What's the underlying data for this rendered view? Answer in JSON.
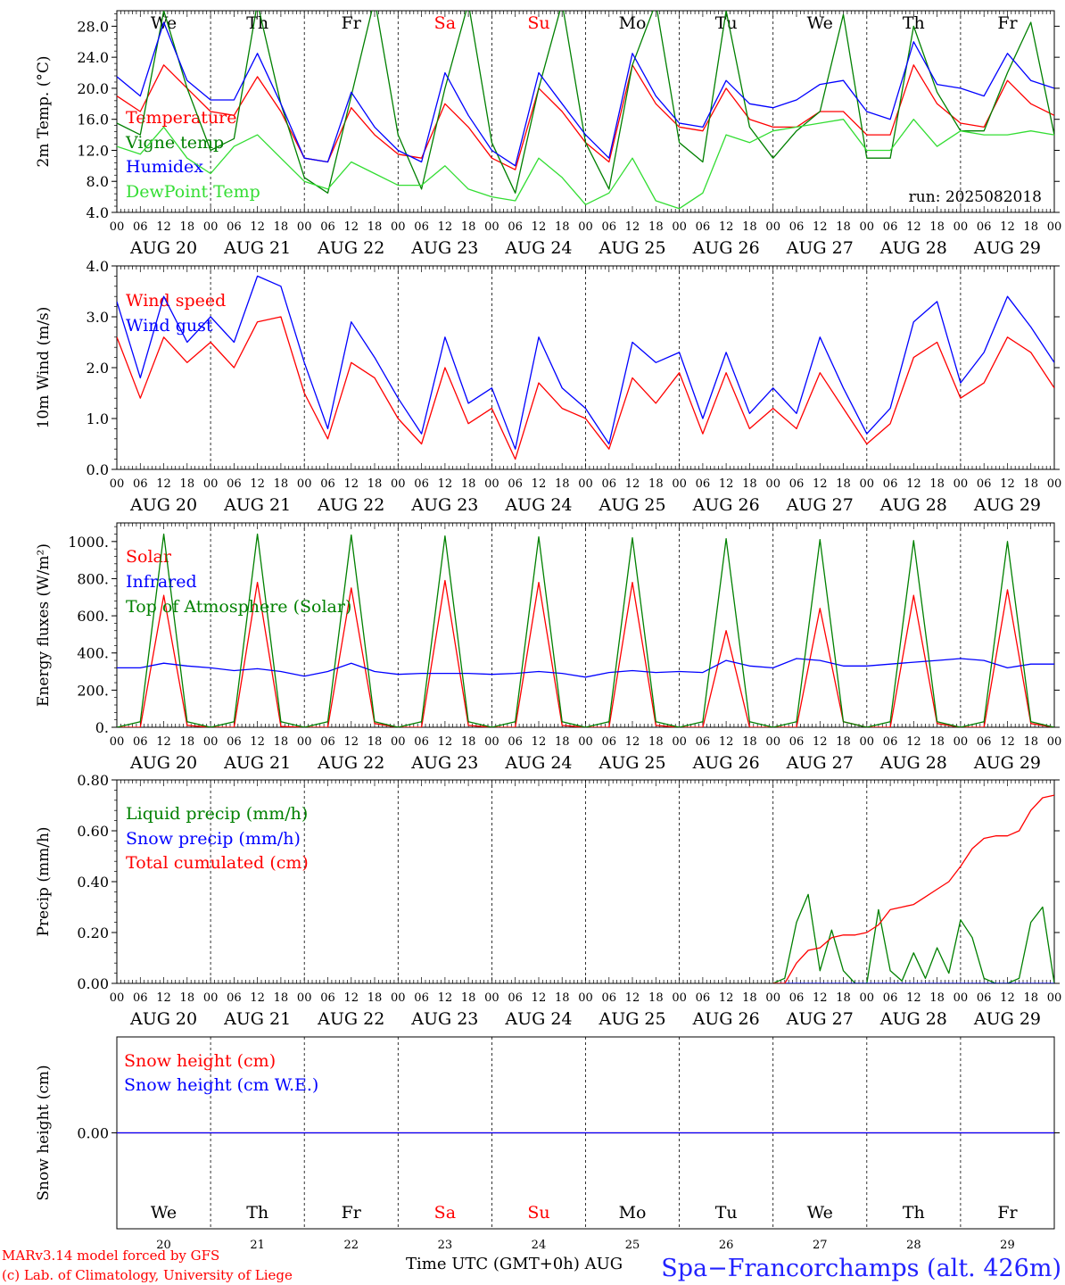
{
  "station": "Spa−Francorchamps (alt. 426m)",
  "run_label": "run: 2025082018",
  "footer": {
    "credit1": "MARv3.14 model forced by GFS",
    "credit2": "(c) Lab. of Climatology, University of Liege",
    "xlabel": "Time UTC (GMT+0h) AUG"
  },
  "colors": {
    "red": "#ff0000",
    "green": "#008000",
    "blue": "#0000ff",
    "lime": "#33dd33",
    "black": "#000000"
  },
  "chart_data": [
    {
      "type": "line",
      "ylabel": "2m Temp. (°C)",
      "ylim": [
        4,
        30
      ],
      "yticks": [
        4,
        8,
        12,
        16,
        20,
        24,
        28
      ],
      "ytick_labels": [
        "4.0",
        "8.0",
        "12.0",
        "16.0",
        "20.0",
        "24.0",
        "28.0"
      ],
      "day_labels": [
        "We",
        "Th",
        "Fr",
        "Sa",
        "Su",
        "Mo",
        "Tu",
        "We",
        "Th",
        "Fr"
      ],
      "x": [
        0,
        6,
        12,
        18,
        24,
        30,
        36,
        42,
        48,
        54,
        60,
        66,
        72,
        78,
        84,
        90,
        96,
        102,
        108,
        114,
        120,
        126,
        132,
        138,
        144,
        150,
        156,
        162,
        168,
        174,
        180,
        186,
        192,
        198,
        204,
        210,
        216,
        222,
        228,
        234,
        240
      ],
      "series": [
        {
          "name": "Temperature",
          "color": "#ff0000",
          "values": [
            19.0,
            17.0,
            23.0,
            20.0,
            17.0,
            16.5,
            21.5,
            17.0,
            11.0,
            10.5,
            17.5,
            14.0,
            11.5,
            11.0,
            18.0,
            15.0,
            11.0,
            9.5,
            20.0,
            17.0,
            13.0,
            10.5,
            23.0,
            18.0,
            15.0,
            14.5,
            20.0,
            16.0,
            15.0,
            15.0,
            17.0,
            17.0,
            14.0,
            14.0,
            23.0,
            18.0,
            15.5,
            15.0,
            21.0,
            18.0,
            16.5
          ]
        },
        {
          "name": "Vigne temp",
          "color": "#008000",
          "values": [
            15.5,
            14.0,
            30.0,
            20.0,
            12.0,
            13.5,
            31.0,
            18.0,
            8.5,
            6.5,
            19.0,
            31.5,
            14.0,
            7.0,
            20.0,
            31.0,
            13.0,
            6.5,
            20.0,
            31.0,
            13.0,
            7.0,
            23.0,
            31.0,
            13.0,
            10.5,
            30.0,
            15.0,
            11.0,
            14.5,
            17.0,
            29.5,
            11.0,
            11.0,
            28.0,
            19.5,
            14.5,
            14.5,
            22.0,
            28.5,
            14.0
          ]
        },
        {
          "name": "Humidex",
          "color": "#0000ff",
          "values": [
            21.5,
            19.0,
            28.5,
            21.0,
            18.5,
            18.5,
            24.5,
            18.0,
            11.0,
            10.5,
            19.5,
            15.0,
            12.0,
            10.5,
            22.0,
            16.5,
            12.0,
            10.0,
            22.0,
            18.0,
            14.0,
            11.0,
            24.5,
            19.0,
            15.5,
            15.0,
            21.0,
            18.0,
            17.5,
            18.5,
            20.5,
            21.0,
            17.0,
            16.0,
            26.0,
            20.5,
            20.0,
            19.0,
            24.5,
            21.0,
            20.0
          ]
        },
        {
          "name": "DewPoint Temp",
          "color": "#33dd33",
          "values": [
            12.5,
            11.5,
            15.0,
            11.0,
            9.0,
            12.5,
            14.0,
            11.0,
            8.0,
            7.0,
            10.5,
            9.0,
            7.5,
            7.5,
            10.0,
            7.0,
            6.0,
            5.5,
            11.0,
            8.5,
            5.0,
            6.5,
            11.0,
            5.5,
            4.5,
            6.5,
            14.0,
            13.0,
            14.5,
            15.0,
            15.5,
            16.0,
            12.0,
            12.0,
            16.0,
            12.5,
            14.5,
            14.0,
            14.0,
            14.5,
            14.0
          ]
        }
      ]
    },
    {
      "type": "line",
      "ylabel": "10m Wind (m/s)",
      "ylim": [
        0,
        4
      ],
      "yticks": [
        0,
        1,
        2,
        3,
        4
      ],
      "ytick_labels": [
        "0.0",
        "1.0",
        "2.0",
        "3.0",
        "4.0"
      ],
      "x": [
        0,
        6,
        12,
        18,
        24,
        30,
        36,
        42,
        48,
        54,
        60,
        66,
        72,
        78,
        84,
        90,
        96,
        102,
        108,
        114,
        120,
        126,
        132,
        138,
        144,
        150,
        156,
        162,
        168,
        174,
        180,
        186,
        192,
        198,
        204,
        210,
        216,
        222,
        228,
        234,
        240
      ],
      "series": [
        {
          "name": "Wind speed",
          "color": "#ff0000",
          "values": [
            2.6,
            1.4,
            2.6,
            2.1,
            2.5,
            2.0,
            2.9,
            3.0,
            1.5,
            0.6,
            2.1,
            1.8,
            1.0,
            0.5,
            2.0,
            0.9,
            1.2,
            0.2,
            1.7,
            1.2,
            1.0,
            0.4,
            1.8,
            1.3,
            1.9,
            0.7,
            1.9,
            0.8,
            1.2,
            0.8,
            1.9,
            1.2,
            0.5,
            0.9,
            2.2,
            2.5,
            1.4,
            1.7,
            2.6,
            2.3,
            1.6
          ]
        },
        {
          "name": "Wind gust",
          "color": "#0000ff",
          "values": [
            3.3,
            1.8,
            3.4,
            2.5,
            3.0,
            2.5,
            3.8,
            3.6,
            2.1,
            0.8,
            2.9,
            2.2,
            1.4,
            0.7,
            2.6,
            1.3,
            1.6,
            0.4,
            2.6,
            1.6,
            1.2,
            0.5,
            2.5,
            2.1,
            2.3,
            1.0,
            2.3,
            1.1,
            1.6,
            1.1,
            2.6,
            1.6,
            0.7,
            1.2,
            2.9,
            3.3,
            1.7,
            2.3,
            3.4,
            2.8,
            2.1
          ]
        }
      ]
    },
    {
      "type": "line",
      "ylabel": "Energy fluxes (W/m²)",
      "ylim": [
        0,
        1100
      ],
      "yticks": [
        0,
        200,
        400,
        600,
        800,
        1000
      ],
      "ytick_labels": [
        "0.",
        "200.",
        "400.",
        "600.",
        "800.",
        "1000."
      ],
      "x": [
        0,
        6,
        12,
        18,
        24,
        30,
        36,
        42,
        48,
        54,
        60,
        66,
        72,
        78,
        84,
        90,
        96,
        102,
        108,
        114,
        120,
        126,
        132,
        138,
        144,
        150,
        156,
        162,
        168,
        174,
        180,
        186,
        192,
        198,
        204,
        210,
        216,
        222,
        228,
        234,
        240
      ],
      "series": [
        {
          "name": "Solar",
          "color": "#ff0000",
          "values": [
            0,
            0,
            710,
            10,
            0,
            0,
            780,
            5,
            0,
            0,
            750,
            20,
            0,
            0,
            790,
            10,
            0,
            0,
            780,
            10,
            0,
            0,
            780,
            10,
            0,
            0,
            520,
            0,
            0,
            0,
            640,
            30,
            0,
            0,
            710,
            20,
            0,
            0,
            740,
            20,
            0
          ]
        },
        {
          "name": "Infrared",
          "color": "#0000ff",
          "values": [
            320,
            320,
            345,
            330,
            320,
            305,
            315,
            300,
            275,
            300,
            345,
            300,
            285,
            290,
            290,
            290,
            285,
            290,
            300,
            290,
            270,
            295,
            305,
            295,
            300,
            295,
            360,
            330,
            320,
            370,
            360,
            330,
            330,
            340,
            350,
            360,
            370,
            360,
            320,
            340,
            340
          ]
        },
        {
          "name": "Top of Atmosphere (Solar)",
          "color": "#008000",
          "values": [
            0,
            30,
            1040,
            30,
            0,
            30,
            1040,
            30,
            0,
            30,
            1035,
            30,
            0,
            30,
            1030,
            30,
            0,
            30,
            1025,
            30,
            0,
            30,
            1020,
            30,
            0,
            30,
            1015,
            30,
            0,
            30,
            1010,
            30,
            0,
            30,
            1005,
            30,
            0,
            30,
            1000,
            30,
            0
          ]
        }
      ]
    },
    {
      "type": "line",
      "ylabel": "Precip (mm/h)",
      "ylim": [
        0,
        0.8
      ],
      "yticks": [
        0,
        0.2,
        0.4,
        0.6,
        0.8
      ],
      "ytick_labels": [
        "0.00",
        "0.20",
        "0.40",
        "0.60",
        "0.80"
      ],
      "x": [
        168,
        171,
        174,
        177,
        180,
        183,
        186,
        189,
        192,
        195,
        198,
        201,
        204,
        207,
        210,
        213,
        216,
        219,
        222,
        225,
        228,
        231,
        234,
        237,
        240
      ],
      "series": [
        {
          "name": "Liquid precip (mm/h)",
          "color": "#008000",
          "values": [
            0,
            0.02,
            0.24,
            0.35,
            0.05,
            0.21,
            0.05,
            0,
            0,
            0.29,
            0.05,
            0.01,
            0.12,
            0.02,
            0.14,
            0.04,
            0.25,
            0.18,
            0.02,
            0,
            0,
            0.02,
            0.24,
            0.3,
            0
          ]
        },
        {
          "name": "Snow precip (mm/h)",
          "color": "#0000ff",
          "values": [
            0,
            0,
            0,
            0,
            0,
            0,
            0,
            0,
            0,
            0,
            0,
            0,
            0,
            0,
            0,
            0,
            0,
            0,
            0,
            0,
            0,
            0,
            0,
            0,
            0
          ]
        },
        {
          "name": "Total cumulated (cm)",
          "color": "#ff0000",
          "values": [
            0,
            0,
            0.08,
            0.13,
            0.14,
            0.18,
            0.19,
            0.19,
            0.2,
            0.23,
            0.29,
            0.3,
            0.31,
            0.34,
            0.37,
            0.4,
            0.46,
            0.53,
            0.57,
            0.58,
            0.58,
            0.6,
            0.68,
            0.73,
            0.74
          ]
        }
      ]
    },
    {
      "type": "line",
      "ylabel": "Snow height (cm)",
      "ylim": [
        -1,
        1
      ],
      "yticks": [
        0
      ],
      "ytick_labels": [
        "0.00"
      ],
      "day_labels": [
        "We",
        "Th",
        "Fr",
        "Sa",
        "Su",
        "Mo",
        "Tu",
        "We",
        "Th",
        "Fr"
      ],
      "day_numbers": [
        "20",
        "21",
        "22",
        "23",
        "24",
        "25",
        "26",
        "27",
        "28",
        "29"
      ],
      "x": [
        0,
        240
      ],
      "series": [
        {
          "name": "Snow height (cm)",
          "color": "#ff0000",
          "values": [
            0,
            0
          ]
        },
        {
          "name": "Snow height (cm W.E.)",
          "color": "#0000ff",
          "values": [
            0,
            0
          ]
        }
      ]
    }
  ],
  "x_axis": {
    "hour_labels": [
      "00",
      "06",
      "12",
      "18"
    ],
    "final_hour": "00",
    "dates": [
      "AUG 20",
      "AUG 21",
      "AUG 22",
      "AUG 23",
      "AUG 24",
      "AUG 25",
      "AUG 26",
      "AUG 27",
      "AUG 28",
      "AUG 29"
    ],
    "weekend_day_indices": [
      3,
      4
    ]
  }
}
